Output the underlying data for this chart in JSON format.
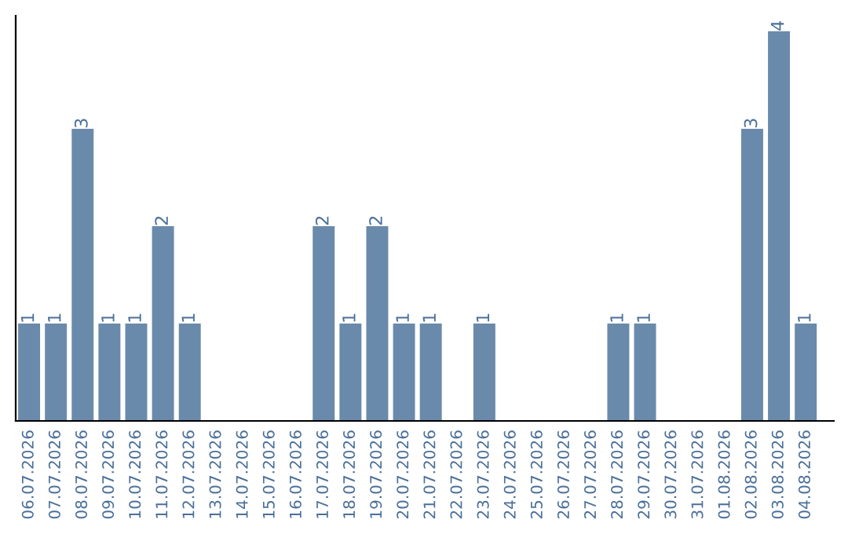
{
  "chart_data": {
    "type": "bar",
    "categories": [
      "06.07.2026",
      "07.07.2026",
      "08.07.2026",
      "09.07.2026",
      "10.07.2026",
      "11.07.2026",
      "12.07.2026",
      "13.07.2026",
      "14.07.2026",
      "15.07.2026",
      "16.07.2026",
      "17.07.2026",
      "18.07.2026",
      "19.07.2026",
      "20.07.2026",
      "21.07.2026",
      "22.07.2026",
      "23.07.2026",
      "24.07.2026",
      "25.07.2026",
      "26.07.2026",
      "27.07.2026",
      "28.07.2026",
      "29.07.2026",
      "30.07.2026",
      "31.07.2026",
      "01.08.2026",
      "02.08.2026",
      "03.08.2026",
      "04.08.2026"
    ],
    "values": [
      1,
      1,
      3,
      1,
      1,
      2,
      1,
      0,
      0,
      0,
      0,
      2,
      1,
      2,
      1,
      1,
      0,
      1,
      0,
      0,
      0,
      0,
      1,
      1,
      0,
      0,
      0,
      3,
      4,
      1
    ],
    "value_labels": [
      "1",
      "1",
      "3",
      "1",
      "1",
      "2",
      "1",
      null,
      null,
      null,
      null,
      "2",
      "1",
      "2",
      "1",
      "1",
      null,
      "1",
      null,
      null,
      null,
      null,
      "1",
      "1",
      null,
      null,
      null,
      "3",
      "4",
      "1"
    ],
    "color": "#6a8aab",
    "tick_labels": "x",
    "grid": false,
    "legend": false
  }
}
